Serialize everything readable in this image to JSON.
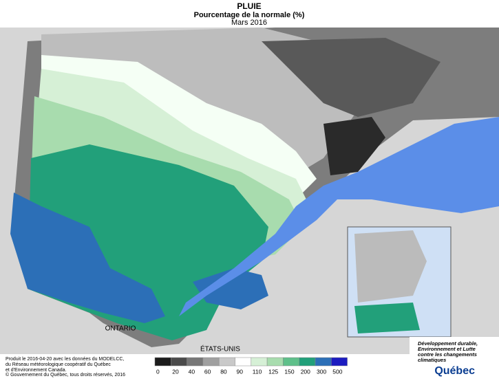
{
  "header": {
    "title": "PLUIE",
    "subtitle": "Pourcentage de la normale (%)",
    "date": "Mars 2016"
  },
  "labels": {
    "ontario": "ONTARIO",
    "usa": "ÉTATS-UNIS"
  },
  "legend": {
    "breaks": [
      0,
      20,
      40,
      60,
      80,
      90,
      110,
      125,
      150,
      200,
      300,
      500
    ],
    "colors": [
      "#1c1c1c",
      "#4b4b4b",
      "#777777",
      "#a0a0a0",
      "#c9c9c9",
      "#ffffff",
      "#d6f0d6",
      "#a8dcae",
      "#5fc08a",
      "#22a07a",
      "#2c6fb7",
      "#1c1cc0"
    ]
  },
  "footer": {
    "produced": [
      "Produit le 2016-04-20 avec les données du MODELCC,",
      "du Réseau météorologique coopératif du Québec",
      "et d'Environnement Canada."
    ],
    "copyright": "© Gouvernement du Québec, tous droits réservés, 2016"
  },
  "logo": {
    "ministry": [
      "Développement durable,",
      "Environnement et Lutte",
      "contre les changements",
      "climatiques"
    ],
    "name": "Québec"
  }
}
